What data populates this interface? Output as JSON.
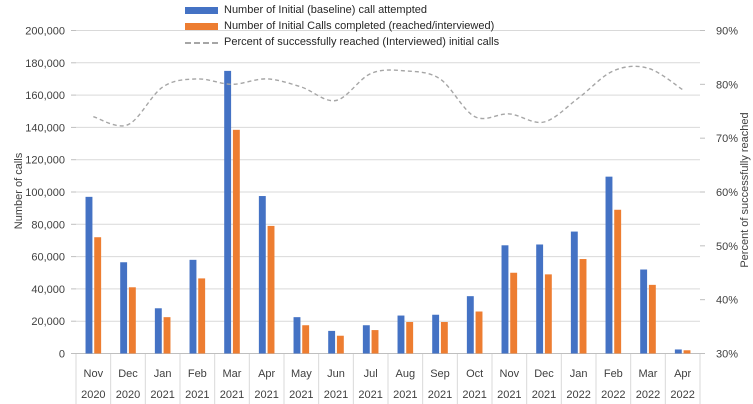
{
  "chart_data": {
    "type": "combo-bar-line",
    "title": "",
    "categories": [
      "Nov 2020",
      "Dec 2020",
      "Jan 2021",
      "Feb 2021",
      "Mar 2021",
      "Apr 2021",
      "May 2021",
      "Jun 2021",
      "Jul 2021",
      "Aug 2021",
      "Sep 2021",
      "Oct 2021",
      "Nov 2021",
      "Dec 2021",
      "Jan 2022",
      "Feb 2022",
      "Mar 2022",
      "Apr 2022"
    ],
    "series": [
      {
        "name": "Number of Initial (baseline) call attempted",
        "type": "bar",
        "axis": "left",
        "color": "#4472C4",
        "values": [
          97000,
          56500,
          28000,
          58000,
          175000,
          97500,
          22500,
          14000,
          17500,
          23500,
          24000,
          35500,
          67000,
          67500,
          75500,
          109500,
          52000,
          2500
        ]
      },
      {
        "name": "Number of Initial Calls completed (reached/interviewed)",
        "type": "bar",
        "axis": "left",
        "color": "#ED7D31",
        "values": [
          72000,
          41000,
          22500,
          46500,
          138500,
          79000,
          17500,
          11000,
          14500,
          19500,
          19500,
          26000,
          50000,
          49000,
          58500,
          89000,
          42500,
          2000
        ]
      },
      {
        "name": "Percent of successfully reached (Interviewed) initial calls",
        "type": "line",
        "axis": "right",
        "smooth": true,
        "dashed": true,
        "color": "#A6A6A6",
        "values": [
          74,
          72.5,
          79.5,
          81,
          80,
          81,
          79.5,
          77,
          82,
          82.5,
          81,
          74,
          74.5,
          73,
          77.5,
          82.5,
          83,
          79
        ]
      }
    ],
    "axes": {
      "left": {
        "title": "Number of calls",
        "min": 0,
        "max": 200000,
        "step": 20000,
        "format": "number"
      },
      "right": {
        "title": "Percent of successfully reached",
        "min": 30,
        "max": 90,
        "step": 10,
        "format": "percent"
      }
    },
    "legend_position": "top",
    "grid": true,
    "colors": {
      "gridline": "#D9D9D9",
      "axis_line": "#BFBFBF",
      "tick_text": "#404040",
      "background": "#FFFFFF"
    }
  }
}
